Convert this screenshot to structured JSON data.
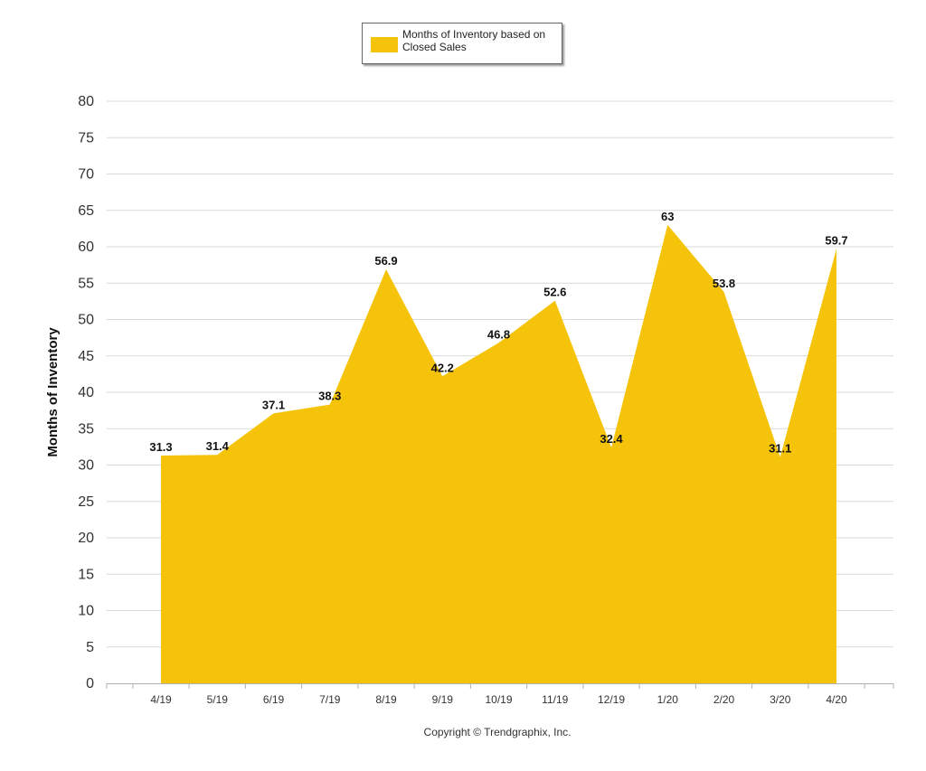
{
  "chart_data": {
    "type": "area",
    "categories": [
      "4/19",
      "5/19",
      "6/19",
      "7/19",
      "8/19",
      "9/19",
      "10/19",
      "11/19",
      "12/19",
      "1/20",
      "2/20",
      "3/20",
      "4/20"
    ],
    "series": [
      {
        "name": "Months of Inventory based on Closed Sales",
        "values": [
          31.3,
          31.4,
          37.1,
          38.3,
          56.9,
          42.2,
          46.8,
          52.6,
          32.4,
          63,
          53.8,
          31.1,
          59.7
        ],
        "labels": [
          "31.3",
          "31.4",
          "37.1",
          "38.3",
          "56.9",
          "42.2",
          "46.8",
          "52.6",
          "32.4",
          "63",
          "53.8",
          "31.1",
          "59.7"
        ],
        "color": "#f5c30a"
      }
    ],
    "ylabel": "Months of Inventory",
    "xlabel": "",
    "ylim": [
      0,
      80
    ],
    "yticks": [
      0,
      5,
      10,
      15,
      20,
      25,
      30,
      35,
      40,
      45,
      50,
      55,
      60,
      65,
      70,
      75,
      80
    ],
    "ytick_labels": [
      "0",
      "5",
      "10",
      "15",
      "20",
      "25",
      "30",
      "35",
      "40",
      "45",
      "50",
      "55",
      "60",
      "65",
      "70",
      "75",
      "80"
    ],
    "grid": true,
    "legend_position": "top-center"
  },
  "legend": {
    "label": "Months of Inventory based on Closed Sales",
    "color": "#f5c30a"
  },
  "footer": {
    "copyright": "Copyright © Trendgraphix, Inc."
  }
}
